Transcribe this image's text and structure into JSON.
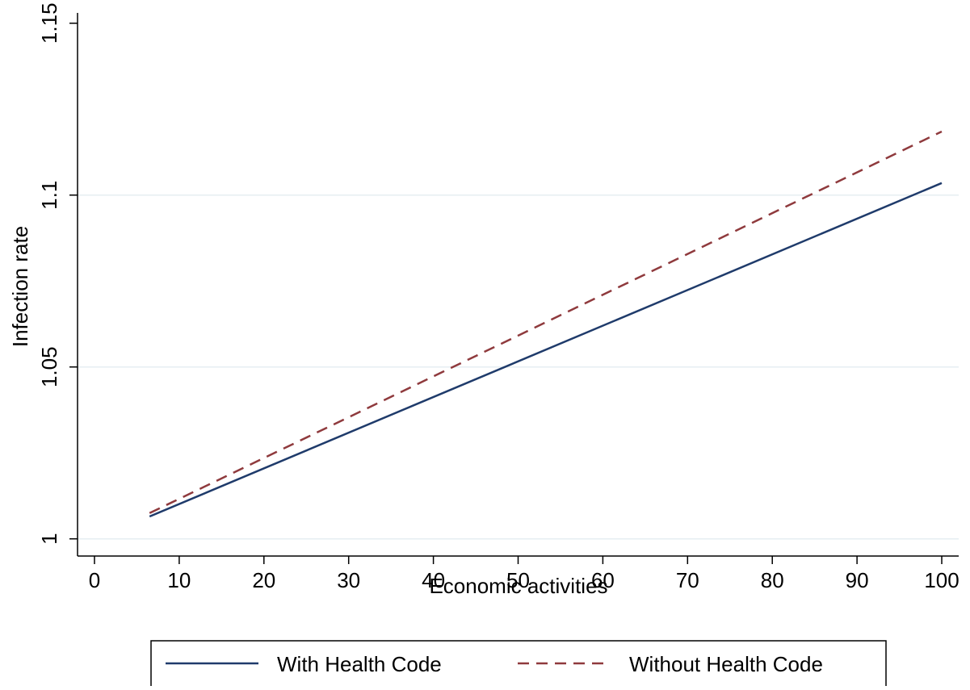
{
  "chart_data": {
    "type": "line",
    "title": "",
    "xlabel": "Economic activities",
    "ylabel": "Infection rate",
    "xlim": [
      -2,
      102
    ],
    "ylim": [
      0.995,
      1.153
    ],
    "x_ticks": [
      0,
      10,
      20,
      30,
      40,
      50,
      60,
      70,
      80,
      90,
      100
    ],
    "y_ticks": [
      1,
      1.05,
      1.1,
      1.15
    ],
    "x_tick_labels": [
      "0",
      "10",
      "20",
      "30",
      "40",
      "50",
      "60",
      "70",
      "80",
      "90",
      "100"
    ],
    "y_tick_labels": [
      "1",
      "1.05",
      "1.1",
      "1.15"
    ],
    "grid": "horizontal",
    "legend_position": "bottom",
    "x": [
      6.5,
      100
    ],
    "series": [
      {
        "name": "With Health Code",
        "values": [
          1.0065,
          1.1035
        ],
        "color": "#1f3b6b",
        "style": "solid"
      },
      {
        "name": "Without Health Code",
        "values": [
          1.0075,
          1.1185
        ],
        "color": "#8f3a3d",
        "style": "dashed"
      }
    ],
    "colors": {
      "grid": "#e6eef2",
      "axis": "#000000"
    }
  }
}
